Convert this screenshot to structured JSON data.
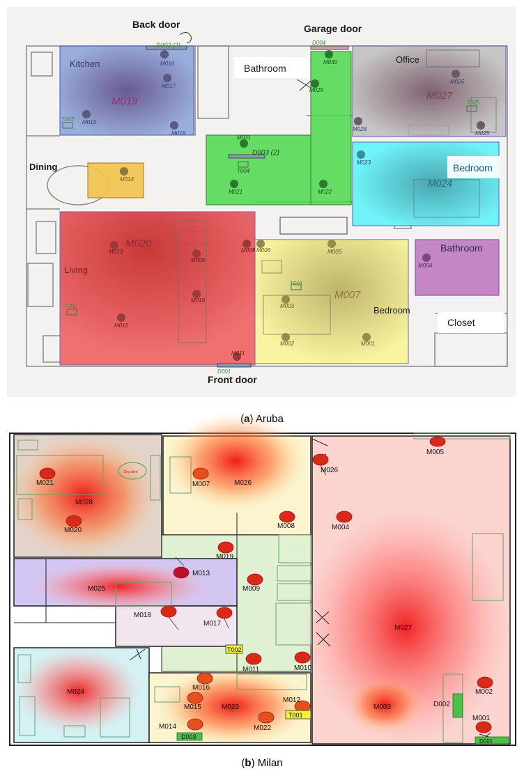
{
  "aruba": {
    "caption_letter": "a",
    "caption_name": "Aruba",
    "labels": {
      "back_door": "Back door",
      "garage_door": "Garage door",
      "kitchen": "Kitchen",
      "bathroom1": "Bathroom",
      "office": "Office",
      "dining": "Dining",
      "bedroom1": "Bedroom",
      "bathroom2": "Bathroom",
      "living": "Living",
      "bedroom2": "Bedroom",
      "closet": "Closet",
      "front_door": "Front door"
    },
    "sensors": {
      "d002": "D002 (?)",
      "d003": "D003 (2)",
      "d004": "D004",
      "d001": "D001",
      "m016": "M016",
      "m017": "M017",
      "m015": "M015",
      "m018": "M018",
      "m019": "M019",
      "t003": "T003",
      "m014": "M014",
      "m031": "M031",
      "t004": "T004",
      "m021": "M021",
      "m030": "M030",
      "m029": "M029",
      "m022": "M022",
      "m026": "M026",
      "m027": "M027",
      "t005": "T005",
      "m028": "M028",
      "m025": "M025",
      "m023": "M023",
      "m024": "M024",
      "m013": "M013",
      "m020": "M020",
      "m009": "M009",
      "m008": "M008",
      "m010": "M010",
      "m012": "M012",
      "t002": "T002",
      "m011": "M011",
      "m006": "M006",
      "m005": "M005",
      "t001": "T001",
      "m003": "M003",
      "m007": "M007",
      "m004": "M004",
      "m002": "M002",
      "m001": "M001"
    }
  },
  "milan": {
    "caption_letter": "b",
    "caption_name": "Milan",
    "sensors": {
      "m021": "M021",
      "m028": "M028",
      "m020": "M020",
      "dog_bed": "Dog Bed",
      "m007": "M007",
      "m026a": "M026",
      "m008": "M008",
      "m026b": "M026",
      "m005": "M005",
      "m004": "M004",
      "m019": "M019",
      "m013": "M013",
      "m025": "M025",
      "m009": "M009",
      "m017": "M017",
      "m018": "M018",
      "m027": "M027",
      "t002": "T002",
      "m011": "M011",
      "m010": "M010",
      "m024": "M024",
      "m016": "M016",
      "m015": "M015",
      "m023": "M023",
      "m012": "M012",
      "t001": "T001",
      "m014": "M014",
      "m022": "M022",
      "d003": "D003",
      "m003": "M003",
      "d002": "D002",
      "m002": "M002",
      "m001": "M001",
      "d001": "D001"
    }
  }
}
